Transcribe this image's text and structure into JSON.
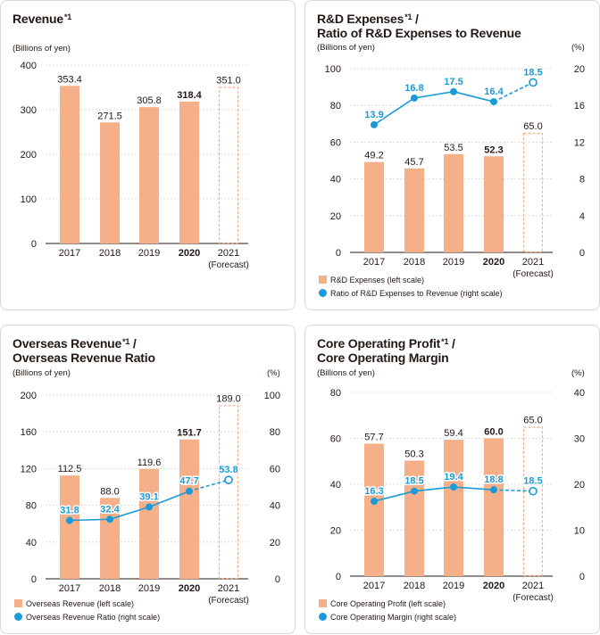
{
  "colors": {
    "bar": "#f5b08a",
    "forecast": "#f5b08a",
    "line": "#1a9bd7",
    "grid": "#c9c9c9",
    "axis": "#231815"
  },
  "chart_data": [
    {
      "type": "bar",
      "title": "Revenue",
      "title_lines": [
        "Revenue"
      ],
      "note_marks": [
        "*1"
      ],
      "ylabel": "(Billions of yen)",
      "ylim": [
        0,
        400
      ],
      "yticks": [
        0,
        100,
        200,
        300,
        400
      ],
      "categories": [
        "2017",
        "2018",
        "2019",
        "2020",
        "2021"
      ],
      "forecast_label": "(Forecast)",
      "values": [
        353.4,
        271.5,
        305.8,
        318.4,
        351.0
      ],
      "value_labels": [
        "353.4",
        "271.5",
        "305.8",
        "318.4",
        "351.0"
      ]
    },
    {
      "type": "bar+line",
      "title": "R&D Expenses*1 / Ratio of R&D Expenses to Revenue",
      "title_lines": [
        "R&D Expenses",
        "Ratio of R&D Expenses to Revenue"
      ],
      "note_marks": [
        "*1",
        ""
      ],
      "slash_after_first": true,
      "ylabel": "(Billions of yen)",
      "ylabel_right": "(%)",
      "ylim": [
        0,
        100
      ],
      "yticks": [
        0,
        20,
        40,
        60,
        80,
        100
      ],
      "ylim_right": [
        0,
        20
      ],
      "yticks_right": [
        0,
        4,
        8,
        12,
        16,
        20
      ],
      "categories": [
        "2017",
        "2018",
        "2019",
        "2020",
        "2021"
      ],
      "forecast_label": "(Forecast)",
      "values": [
        49.2,
        45.7,
        53.5,
        52.3,
        65.0
      ],
      "value_labels": [
        "49.2",
        "45.7",
        "53.5",
        "52.3",
        "65.0"
      ],
      "line_values": [
        13.9,
        16.8,
        17.5,
        16.4,
        18.5
      ],
      "line_labels": [
        "13.9",
        "16.8",
        "17.5",
        "16.4",
        "18.5"
      ],
      "legend": [
        "R&D Expenses (left scale)",
        "Ratio of R&D Expenses to Revenue (right scale)"
      ]
    },
    {
      "type": "bar+line",
      "title": "Overseas Revenue*1 / Overseas Revenue Ratio",
      "title_lines": [
        "Overseas Revenue",
        "Overseas Revenue Ratio"
      ],
      "note_marks": [
        "*1",
        ""
      ],
      "slash_after_first": true,
      "ylabel": "(Billions of yen)",
      "ylabel_right": "(%)",
      "ylim": [
        0,
        200
      ],
      "yticks": [
        0,
        40,
        80,
        120,
        160,
        200
      ],
      "ylim_right": [
        0,
        100
      ],
      "yticks_right": [
        0,
        20,
        40,
        60,
        80,
        100
      ],
      "categories": [
        "2017",
        "2018",
        "2019",
        "2020",
        "2021"
      ],
      "forecast_label": "(Forecast)",
      "values": [
        112.5,
        88.0,
        119.6,
        151.7,
        189.0
      ],
      "value_labels": [
        "112.5",
        "88.0",
        "119.6",
        "151.7",
        "189.0"
      ],
      "line_values": [
        31.8,
        32.4,
        39.1,
        47.7,
        53.8
      ],
      "line_labels": [
        "31.8",
        "32.4",
        "39.1",
        "47.7",
        "53.8"
      ],
      "legend": [
        "Overseas Revenue (left scale)",
        "Overseas Revenue Ratio (right scale)"
      ]
    },
    {
      "type": "bar+line",
      "title": "Core Operating Profit*1 / Core Operating Margin",
      "title_lines": [
        "Core Operating Profit",
        "Core Operating Margin"
      ],
      "note_marks": [
        "*1",
        ""
      ],
      "slash_after_first": true,
      "ylabel": "(Billions of yen)",
      "ylabel_right": "(%)",
      "ylim": [
        0,
        80
      ],
      "yticks": [
        0,
        20,
        40,
        60,
        80
      ],
      "ylim_right": [
        0,
        40
      ],
      "yticks_right": [
        0,
        10,
        20,
        30,
        40
      ],
      "categories": [
        "2017",
        "2018",
        "2019",
        "2020",
        "2021"
      ],
      "forecast_label": "(Forecast)",
      "values": [
        57.7,
        50.3,
        59.4,
        60.0,
        65.0
      ],
      "value_labels": [
        "57.7",
        "50.3",
        "59.4",
        "60.0",
        "65.0"
      ],
      "line_values": [
        16.3,
        18.5,
        19.4,
        18.8,
        18.5
      ],
      "line_labels": [
        "16.3",
        "18.5",
        "19.4",
        "18.8",
        "18.5"
      ],
      "legend": [
        "Core Operating Profit (left scale)",
        "Core Operating Margin (right scale)"
      ]
    }
  ]
}
